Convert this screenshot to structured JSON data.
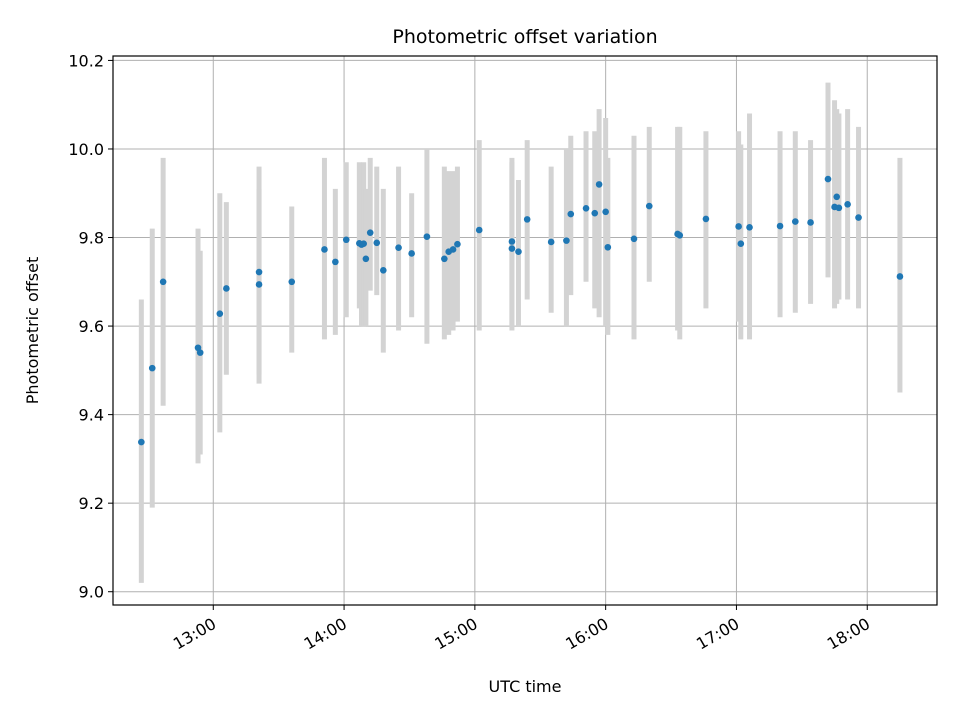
{
  "chart_data": {
    "type": "scatter",
    "title": "Photometric offset variation",
    "xlabel": "UTC time",
    "ylabel": "Photometric offset",
    "grid": true,
    "x_axis_kind": "time",
    "xlim": [
      "12:14",
      "18:32"
    ],
    "ylim": [
      8.97,
      10.21
    ],
    "x_ticks": [
      "13:00",
      "14:00",
      "15:00",
      "16:00",
      "17:00",
      "18:00"
    ],
    "y_ticks": [
      "9.0",
      "9.2",
      "9.4",
      "9.6",
      "9.8",
      "10.0",
      "10.2"
    ],
    "colors": {
      "point": "#1f77b4",
      "errorbar": "#d3d3d3",
      "grid": "#b0b0b0"
    },
    "series": [
      {
        "x": [
          "12:27",
          "12:32",
          "12:37",
          "12:53",
          "12:54",
          "13:03",
          "13:06",
          "13:21",
          "13:21",
          "13:36",
          "13:51",
          "13:56",
          "14:01",
          "14:07",
          "14:08",
          "14:09",
          "14:10",
          "14:12",
          "14:15",
          "14:18",
          "14:25",
          "14:31",
          "14:38",
          "14:46",
          "14:48",
          "14:50",
          "14:52",
          "15:02",
          "15:17",
          "15:17",
          "15:20",
          "15:24",
          "15:35",
          "15:42",
          "15:44",
          "15:51",
          "15:55",
          "15:57",
          "16:00",
          "16:01",
          "16:13",
          "16:20",
          "16:33",
          "16:34",
          "16:46",
          "17:01",
          "17:02",
          "17:06",
          "17:20",
          "17:27",
          "17:34",
          "17:42",
          "17:45",
          "17:46",
          "17:47",
          "17:51",
          "17:56",
          "18:15"
        ],
        "y": [
          9.338,
          9.505,
          9.7,
          9.551,
          9.54,
          9.628,
          9.685,
          9.722,
          9.694,
          9.7,
          9.773,
          9.745,
          9.795,
          9.787,
          9.784,
          9.786,
          9.752,
          9.811,
          9.788,
          9.726,
          9.777,
          9.764,
          9.802,
          9.752,
          9.768,
          9.773,
          9.785,
          9.817,
          9.791,
          9.775,
          9.768,
          9.841,
          9.79,
          9.793,
          9.853,
          9.866,
          9.855,
          9.92,
          9.858,
          9.778,
          9.797,
          9.871,
          9.808,
          9.805,
          9.842,
          9.825,
          9.786,
          9.823,
          9.826,
          9.836,
          9.834,
          9.932,
          9.869,
          9.892,
          9.867,
          9.875,
          9.845,
          9.712
        ],
        "err_low": [
          9.02,
          9.19,
          9.42,
          9.29,
          9.31,
          9.36,
          9.49,
          9.49,
          9.47,
          9.54,
          9.57,
          9.58,
          9.62,
          9.64,
          9.6,
          9.6,
          9.6,
          9.68,
          9.67,
          9.54,
          9.59,
          9.62,
          9.56,
          9.57,
          9.58,
          9.59,
          9.61,
          9.59,
          9.6,
          9.59,
          9.6,
          9.66,
          9.63,
          9.6,
          9.67,
          9.7,
          9.64,
          9.62,
          9.6,
          9.58,
          9.57,
          9.7,
          9.59,
          9.57,
          9.64,
          9.61,
          9.57,
          9.57,
          9.62,
          9.63,
          9.65,
          9.71,
          9.64,
          9.65,
          9.66,
          9.66,
          9.64,
          9.45
        ],
        "err_high": [
          9.66,
          9.82,
          9.98,
          9.82,
          9.77,
          9.9,
          9.88,
          9.96,
          9.91,
          9.87,
          9.98,
          9.91,
          9.97,
          9.97,
          9.94,
          9.97,
          9.91,
          9.98,
          9.96,
          9.91,
          9.96,
          9.9,
          10.0,
          9.96,
          9.95,
          9.95,
          9.96,
          10.02,
          9.98,
          9.97,
          9.93,
          10.02,
          9.96,
          10.0,
          10.03,
          10.04,
          10.04,
          10.09,
          10.07,
          9.98,
          10.03,
          10.05,
          10.05,
          10.05,
          10.04,
          10.04,
          10.01,
          10.08,
          10.04,
          10.04,
          10.02,
          10.15,
          10.11,
          10.09,
          10.08,
          10.09,
          10.05,
          9.98
        ]
      }
    ]
  }
}
